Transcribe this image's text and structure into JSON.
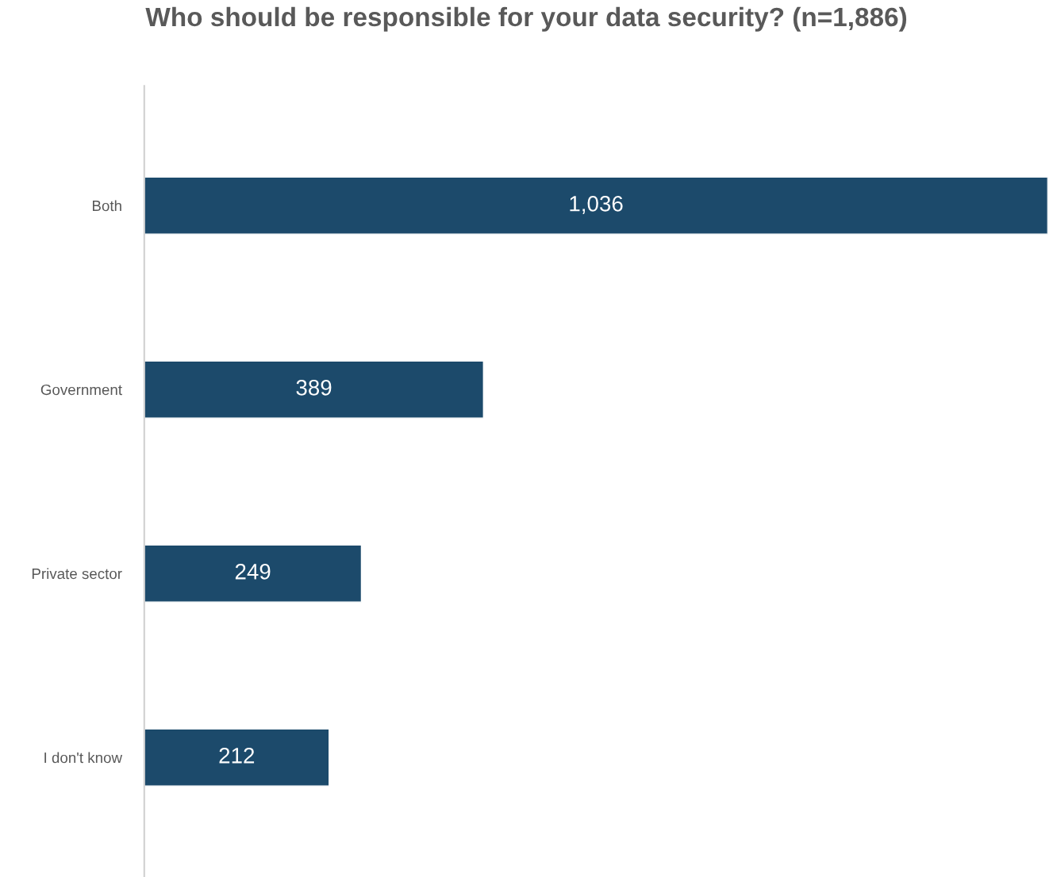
{
  "chart_data": {
    "type": "bar",
    "orientation": "horizontal",
    "title": "Who should be responsible for your data security? (n=1,886)",
    "categories": [
      "Both",
      "Government",
      "Private sector",
      "I don't know"
    ],
    "values": [
      1036,
      389,
      249,
      212
    ],
    "value_labels": [
      "1,036",
      "389",
      "249",
      "212"
    ],
    "color": "#1c4a6b",
    "grid": false,
    "legend": false
  }
}
